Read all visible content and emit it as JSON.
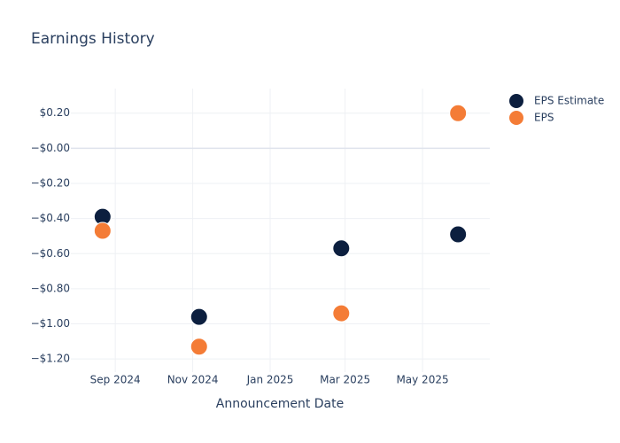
{
  "chart_data": {
    "type": "scatter",
    "title": "Earnings History",
    "x_label": "Announcement Date",
    "x": [
      "2024-08-22",
      "2024-11-06",
      "2025-02-26",
      "2025-05-29"
    ],
    "series": [
      {
        "name": "EPS Estimate",
        "color": "#0c1f3f",
        "values": [
          -0.39,
          -0.96,
          -0.57,
          -0.49
        ]
      },
      {
        "name": "EPS",
        "color": "#f47c36",
        "values": [
          -0.47,
          -1.13,
          -0.94,
          0.2
        ]
      }
    ],
    "xlim": [
      "2024-07-28",
      "2025-06-23"
    ],
    "xticks": [
      {
        "value": "2024-09-01",
        "label": "Sep 2024"
      },
      {
        "value": "2024-11-01",
        "label": "Nov 2024"
      },
      {
        "value": "2025-01-01",
        "label": "Jan 2025"
      },
      {
        "value": "2025-03-01",
        "label": "Mar 2025"
      },
      {
        "value": "2025-05-01",
        "label": "May 2025"
      }
    ],
    "ylim": [
      -1.275,
      0.34
    ],
    "yticks": [
      {
        "value": 0.2,
        "label": "$0.20"
      },
      {
        "value": 0,
        "label": "−$0.00"
      },
      {
        "value": -0.2,
        "label": "−$0.20"
      },
      {
        "value": -0.4,
        "label": "−$0.40"
      },
      {
        "value": -0.6,
        "label": "−$0.60"
      },
      {
        "value": -0.8,
        "label": "−$0.80"
      },
      {
        "value": -1,
        "label": "−$1.00"
      },
      {
        "value": -1.2,
        "label": "−$1.20"
      }
    ],
    "grid": true,
    "legend": "top-right"
  }
}
